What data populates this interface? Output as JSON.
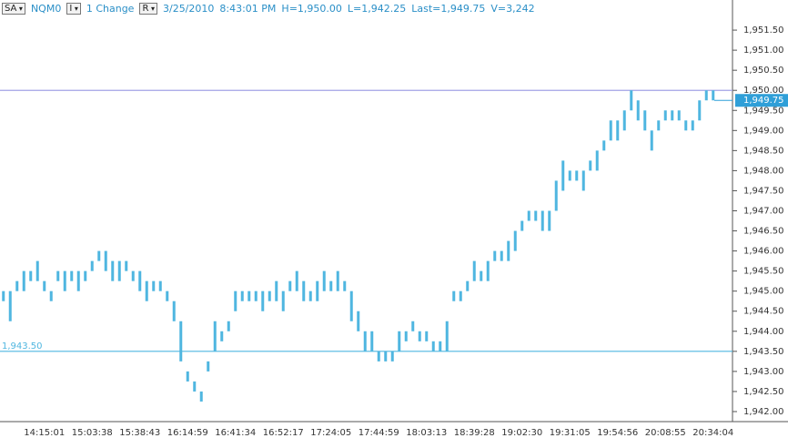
{
  "header": {
    "symbol_menu": "SA",
    "symbol": "NQM0",
    "interval_menu": "I",
    "interval": "1 Change",
    "range_menu": "R",
    "date": "3/25/2010",
    "time": "8:43:01 PM",
    "high": "H=1,950.00",
    "low": "L=1,942.25",
    "last": "Last=1,949.75",
    "volume": "V=3,242"
  },
  "chart_data": {
    "type": "range_bar",
    "color": "#4fb6e0",
    "categories": [
      null,
      null,
      null,
      null,
      null,
      null,
      "14:15:01",
      null,
      null,
      null,
      null,
      null,
      null,
      "15:03:38",
      null,
      null,
      null,
      null,
      null,
      null,
      "15:38:43",
      null,
      null,
      null,
      null,
      null,
      null,
      "16:14:59",
      null,
      null,
      null,
      null,
      null,
      null,
      "16:41:34",
      null,
      null,
      null,
      null,
      null,
      null,
      "16:52:17",
      null,
      null,
      null,
      null,
      null,
      null,
      "17:24:05",
      null,
      null,
      null,
      null,
      null,
      null,
      "17:44:59",
      null,
      null,
      null,
      null,
      null,
      null,
      "18:03:13",
      null,
      null,
      null,
      null,
      null,
      null,
      "18:39:28",
      null,
      null,
      null,
      null,
      null,
      null,
      "19:02:30",
      null,
      null,
      null,
      null,
      null,
      null,
      "19:31:05",
      null,
      null,
      null,
      null,
      null,
      null,
      "19:54:56",
      null,
      null,
      null,
      null,
      null,
      null,
      "20:08:55",
      null,
      null,
      null,
      null,
      null,
      null,
      "20:34:04"
    ],
    "high": [
      1945,
      1945,
      1945.25,
      1945.5,
      1945.5,
      1945.75,
      1945.25,
      1945,
      1945.5,
      1945.5,
      1945.5,
      1945.5,
      1945.5,
      1945.75,
      1946,
      1946,
      1945.75,
      1945.75,
      1945.75,
      1945.5,
      1945.5,
      1945.25,
      1945.25,
      1945.25,
      1945,
      1944.75,
      1944.25,
      1943,
      1942.75,
      1942.5,
      1943.25,
      1944.25,
      1944,
      1944.25,
      1945,
      1945,
      1945,
      1945,
      1945,
      1945,
      1945.25,
      1945,
      1945.25,
      1945.5,
      1945.25,
      1945,
      1945.25,
      1945.5,
      1945.25,
      1945.5,
      1945.25,
      1945,
      1944.5,
      1944,
      1944,
      1943.5,
      1943.5,
      1943.5,
      1944,
      1944,
      1944.25,
      1944,
      1944,
      1943.75,
      1943.75,
      1944.25,
      1945,
      1945,
      1945.25,
      1945.75,
      1945.5,
      1945.75,
      1946,
      1946,
      1946.25,
      1946.5,
      1946.75,
      1947,
      1947,
      1947,
      1947,
      1947.75,
      1948.25,
      1948,
      1948,
      1948,
      1948.25,
      1948.5,
      1948.75,
      1949.25,
      1949.25,
      1949.5,
      1950,
      1949.75,
      1949.5,
      1949,
      1949.25,
      1949.5,
      1949.5,
      1949.5,
      1949.25,
      1949.25,
      1949.75,
      1950,
      1950
    ],
    "low": [
      1944.75,
      1944.25,
      1945,
      1945,
      1945.25,
      1945.25,
      1945,
      1944.75,
      1945.25,
      1945,
      1945.25,
      1945,
      1945.25,
      1945.5,
      1945.75,
      1945.5,
      1945.25,
      1945.25,
      1945.5,
      1945.25,
      1945,
      1944.75,
      1945,
      1945,
      1944.75,
      1944.25,
      1943.25,
      1942.75,
      1942.5,
      1942.25,
      1943,
      1943.5,
      1943.75,
      1944,
      1944.5,
      1944.75,
      1944.75,
      1944.75,
      1944.5,
      1944.75,
      1944.75,
      1944.5,
      1945,
      1945,
      1944.75,
      1944.75,
      1944.75,
      1945,
      1945,
      1945,
      1945,
      1944.25,
      1944,
      1943.5,
      1943.5,
      1943.25,
      1943.25,
      1943.25,
      1943.5,
      1943.75,
      1944,
      1943.75,
      1943.75,
      1943.5,
      1943.5,
      1943.5,
      1944.75,
      1944.75,
      1945,
      1945.25,
      1945.25,
      1945.25,
      1945.75,
      1945.75,
      1945.75,
      1946,
      1946.5,
      1946.75,
      1946.75,
      1946.5,
      1946.5,
      1947,
      1947.5,
      1947.75,
      1947.75,
      1947.5,
      1948,
      1948,
      1948.5,
      1948.75,
      1948.75,
      1949,
      1949.5,
      1949.25,
      1949,
      1948.5,
      1949,
      1949.25,
      1949.25,
      1949.25,
      1949,
      1949,
      1949.25,
      1949.75,
      1949.75
    ],
    "ylim": [
      1941.75,
      1952.25
    ],
    "yticks": [
      {
        "value": 1942,
        "label": "1,942.00"
      },
      {
        "value": 1942.5,
        "label": "1,942.50"
      },
      {
        "value": 1943,
        "label": "1,943.00"
      },
      {
        "value": 1943.5,
        "label": "1,943.50"
      },
      {
        "value": 1944,
        "label": "1,944.00"
      },
      {
        "value": 1944.5,
        "label": "1,944.50"
      },
      {
        "value": 1945,
        "label": "1,945.00"
      },
      {
        "value": 1945.5,
        "label": "1,945.50"
      },
      {
        "value": 1946,
        "label": "1,946.00"
      },
      {
        "value": 1946.5,
        "label": "1,946.50"
      },
      {
        "value": 1947,
        "label": "1,947.00"
      },
      {
        "value": 1947.5,
        "label": "1,947.50"
      },
      {
        "value": 1948,
        "label": "1,948.00"
      },
      {
        "value": 1948.5,
        "label": "1,948.50"
      },
      {
        "value": 1949,
        "label": "1,949.00"
      },
      {
        "value": 1949.5,
        "label": "1,949.50"
      },
      {
        "value": 1950,
        "label": "1,950.00"
      },
      {
        "value": 1950.5,
        "label": "1,950.50"
      },
      {
        "value": 1951,
        "label": "1,951.00"
      },
      {
        "value": 1951.5,
        "label": "1,951.50"
      }
    ],
    "reference_lines": [
      {
        "value": 1950,
        "color": "#a3a3e6"
      },
      {
        "value": 1943.5,
        "label": "1,943.50",
        "color": "#4fb6e0"
      }
    ],
    "last_marker": {
      "value": 1949.75,
      "label": "1,949.75",
      "color": "#2f9fd8"
    }
  }
}
